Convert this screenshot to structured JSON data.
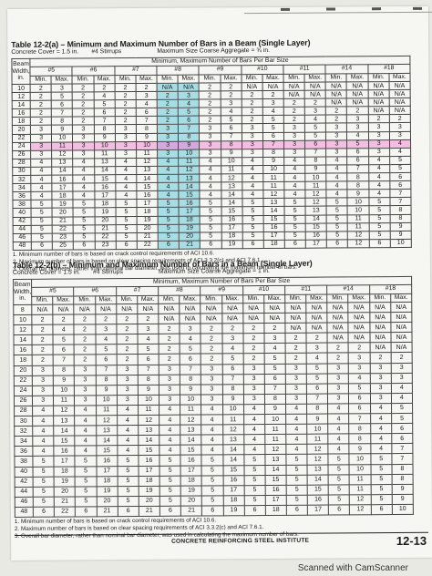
{
  "colors": {
    "paper": "#f6f6f2",
    "highlight_blue": "#a7dde5",
    "highlight_pink": "#f4bde2"
  },
  "table_a": {
    "title": "Table 12-2(a) – Minimum and Maximum Number of Bars in a Beam (Single Layer)",
    "concrete_cover": "Concrete Cover = 1.5 in.",
    "stirrups": "#4 Stirrups",
    "aggregate": "Maximum Size Coarse Aggregate = ¾ in.",
    "caption": "Minimum, Maximum Number of Bars Per Bar Size",
    "beam_width_label": "Beam Width, in.",
    "bar_sizes": [
      "#5",
      "#6",
      "#7",
      "#8",
      "#9",
      "#10",
      "#11",
      "#14",
      "#18"
    ],
    "min_label": "Min.",
    "max_label": "Max.",
    "rows": [
      [
        "10",
        "2",
        "3",
        "2",
        "2",
        "2",
        "2",
        "N/A",
        "N/A",
        "2",
        "2",
        "N/A",
        "N/A",
        "N/A",
        "N/A",
        "N/A",
        "N/A",
        "N/A",
        "N/A"
      ],
      [
        "12",
        "2",
        "5",
        "2",
        "4",
        "2",
        "3",
        "2",
        "3",
        "2",
        "2",
        "2",
        "2",
        "N/A",
        "N/A",
        "N/A",
        "N/A",
        "N/A",
        "N/A"
      ],
      [
        "14",
        "2",
        "6",
        "2",
        "5",
        "2",
        "4",
        "2",
        "4",
        "2",
        "3",
        "2",
        "3",
        "2",
        "2",
        "N/A",
        "N/A",
        "N/A",
        "N/A"
      ],
      [
        "16",
        "2",
        "7",
        "2",
        "6",
        "2",
        "6",
        "2",
        "5",
        "2",
        "4",
        "2",
        "4",
        "2",
        "3",
        "2",
        "2",
        "N/A",
        "N/A"
      ],
      [
        "18",
        "2",
        "8",
        "2",
        "7",
        "2",
        "7",
        "2",
        "6",
        "2",
        "5",
        "2",
        "5",
        "2",
        "4",
        "2",
        "3",
        "2",
        "2"
      ],
      [
        "20",
        "3",
        "9",
        "3",
        "8",
        "3",
        "8",
        "3",
        "7",
        "3",
        "6",
        "3",
        "5",
        "3",
        "5",
        "3",
        "3",
        "3",
        "3"
      ],
      [
        "22",
        "3",
        "10",
        "3",
        "9",
        "3",
        "9",
        "3",
        "8",
        "3",
        "7",
        "3",
        "6",
        "3",
        "5",
        "3",
        "4",
        "3",
        "3"
      ],
      [
        "24",
        "3",
        "11",
        "3",
        "10",
        "3",
        "10",
        "3",
        "9",
        "3",
        "8",
        "3",
        "7",
        "3",
        "6",
        "3",
        "5",
        "3",
        "4"
      ],
      [
        "26",
        "3",
        "12",
        "3",
        "11",
        "3",
        "11",
        "3",
        "10",
        "3",
        "9",
        "3",
        "8",
        "3",
        "7",
        "3",
        "6",
        "3",
        "4"
      ],
      [
        "28",
        "4",
        "13",
        "4",
        "13",
        "4",
        "12",
        "4",
        "11",
        "4",
        "10",
        "4",
        "9",
        "4",
        "8",
        "4",
        "6",
        "4",
        "5"
      ],
      [
        "30",
        "4",
        "14",
        "4",
        "14",
        "4",
        "13",
        "4",
        "12",
        "4",
        "11",
        "4",
        "10",
        "4",
        "9",
        "4",
        "7",
        "4",
        "5"
      ],
      [
        "32",
        "4",
        "16",
        "4",
        "15",
        "4",
        "14",
        "4",
        "13",
        "4",
        "12",
        "4",
        "11",
        "4",
        "10",
        "4",
        "8",
        "4",
        "6"
      ],
      [
        "34",
        "4",
        "17",
        "4",
        "16",
        "4",
        "15",
        "4",
        "14",
        "4",
        "13",
        "4",
        "11",
        "4",
        "11",
        "4",
        "8",
        "4",
        "6"
      ],
      [
        "36",
        "4",
        "18",
        "4",
        "17",
        "4",
        "16",
        "4",
        "15",
        "4",
        "14",
        "4",
        "12",
        "4",
        "12",
        "4",
        "9",
        "4",
        "7"
      ],
      [
        "38",
        "5",
        "19",
        "5",
        "18",
        "5",
        "17",
        "5",
        "16",
        "5",
        "14",
        "5",
        "13",
        "5",
        "12",
        "5",
        "10",
        "5",
        "7"
      ],
      [
        "40",
        "5",
        "20",
        "5",
        "19",
        "5",
        "18",
        "5",
        "17",
        "5",
        "15",
        "5",
        "14",
        "5",
        "13",
        "5",
        "10",
        "5",
        "8"
      ],
      [
        "42",
        "5",
        "21",
        "5",
        "20",
        "5",
        "19",
        "5",
        "18",
        "5",
        "16",
        "5",
        "15",
        "5",
        "14",
        "5",
        "11",
        "5",
        "8"
      ],
      [
        "44",
        "5",
        "22",
        "5",
        "21",
        "5",
        "20",
        "5",
        "19",
        "5",
        "17",
        "5",
        "16",
        "5",
        "15",
        "5",
        "11",
        "5",
        "9"
      ],
      [
        "46",
        "5",
        "23",
        "5",
        "22",
        "5",
        "21",
        "5",
        "20",
        "5",
        "18",
        "5",
        "17",
        "5",
        "16",
        "5",
        "12",
        "5",
        "9"
      ],
      [
        "48",
        "6",
        "25",
        "6",
        "23",
        "6",
        "22",
        "6",
        "21",
        "6",
        "19",
        "6",
        "18",
        "6",
        "17",
        "6",
        "12",
        "6",
        "10"
      ]
    ],
    "footnotes": [
      "1. Minimum number of bars is based on crack control requirements of ACI 10.6.",
      "2. Maximum number of bars is based on clear spacing requirements of ACI 3.3.2(c) and ACI 7.6.1.",
      "3. Overall bar diameter, rather than nominal bar diameter, was used in calculating the maximum number of bars."
    ]
  },
  "table_b": {
    "title": "Table 12-2(b) – Minimum and Maximum Number of Bars in a Beam (Single Layer)",
    "concrete_cover": "Concrete Cover = 1.5 in.",
    "stirrups": "#4 Stirrups",
    "aggregate": "Maximum Size Coarse Aggregate = 1 in.",
    "caption": "Minimum, Maximum Number of Bars Per Bar Size",
    "beam_width_label": "Beam Width, in.",
    "bar_sizes": [
      "#5",
      "#6",
      "#7",
      "#8",
      "#9",
      "#10",
      "#11",
      "#14",
      "#18"
    ],
    "min_label": "Min.",
    "max_label": "Max.",
    "rows": [
      [
        "8",
        "N/A",
        "N/A",
        "N/A",
        "N/A",
        "N/A",
        "N/A",
        "N/A",
        "N/A",
        "N/A",
        "N/A",
        "N/A",
        "N/A",
        "N/A",
        "N/A",
        "N/A",
        "N/A",
        "N/A",
        "N/A"
      ],
      [
        "10",
        "2",
        "2",
        "2",
        "2",
        "2",
        "2",
        "N/A",
        "N/A",
        "N/A",
        "N/A",
        "N/A",
        "N/A",
        "N/A",
        "N/A",
        "N/A",
        "N/A",
        "N/A",
        "N/A"
      ],
      [
        "12",
        "2",
        "4",
        "2",
        "3",
        "2",
        "3",
        "2",
        "3",
        "2",
        "2",
        "2",
        "2",
        "N/A",
        "N/A",
        "N/A",
        "N/A",
        "N/A",
        "N/A"
      ],
      [
        "14",
        "2",
        "5",
        "2",
        "4",
        "2",
        "4",
        "2",
        "4",
        "2",
        "3",
        "2",
        "3",
        "2",
        "2",
        "N/A",
        "N/A",
        "N/A",
        "N/A"
      ],
      [
        "16",
        "2",
        "6",
        "2",
        "5",
        "2",
        "5",
        "2",
        "5",
        "2",
        "4",
        "2",
        "4",
        "2",
        "3",
        "2",
        "2",
        "N/A",
        "N/A"
      ],
      [
        "18",
        "2",
        "7",
        "2",
        "6",
        "2",
        "6",
        "2",
        "6",
        "2",
        "5",
        "2",
        "5",
        "2",
        "4",
        "2",
        "3",
        "2",
        "2"
      ],
      [
        "20",
        "3",
        "8",
        "3",
        "7",
        "3",
        "7",
        "3",
        "7",
        "3",
        "6",
        "3",
        "5",
        "3",
        "5",
        "3",
        "3",
        "3",
        "3"
      ],
      [
        "22",
        "3",
        "9",
        "3",
        "8",
        "3",
        "8",
        "3",
        "8",
        "3",
        "7",
        "3",
        "6",
        "3",
        "5",
        "3",
        "4",
        "3",
        "3"
      ],
      [
        "24",
        "3",
        "10",
        "3",
        "9",
        "3",
        "9",
        "3",
        "9",
        "3",
        "8",
        "3",
        "7",
        "3",
        "6",
        "3",
        "5",
        "3",
        "4"
      ],
      [
        "26",
        "3",
        "11",
        "3",
        "10",
        "3",
        "10",
        "3",
        "10",
        "3",
        "9",
        "3",
        "8",
        "3",
        "7",
        "3",
        "6",
        "3",
        "4"
      ],
      [
        "28",
        "4",
        "12",
        "4",
        "11",
        "4",
        "11",
        "4",
        "11",
        "4",
        "10",
        "4",
        "9",
        "4",
        "8",
        "4",
        "6",
        "4",
        "5"
      ],
      [
        "30",
        "4",
        "13",
        "4",
        "12",
        "4",
        "12",
        "4",
        "12",
        "4",
        "11",
        "4",
        "10",
        "4",
        "9",
        "4",
        "7",
        "4",
        "5"
      ],
      [
        "32",
        "4",
        "14",
        "4",
        "13",
        "4",
        "13",
        "4",
        "13",
        "4",
        "12",
        "4",
        "11",
        "4",
        "10",
        "4",
        "8",
        "4",
        "6"
      ],
      [
        "34",
        "4",
        "15",
        "4",
        "14",
        "4",
        "14",
        "4",
        "14",
        "4",
        "13",
        "4",
        "11",
        "4",
        "11",
        "4",
        "8",
        "4",
        "6"
      ],
      [
        "36",
        "4",
        "16",
        "4",
        "15",
        "4",
        "15",
        "4",
        "15",
        "4",
        "14",
        "4",
        "12",
        "4",
        "12",
        "4",
        "9",
        "4",
        "7"
      ],
      [
        "38",
        "5",
        "17",
        "5",
        "16",
        "5",
        "16",
        "5",
        "16",
        "5",
        "14",
        "5",
        "13",
        "5",
        "12",
        "5",
        "10",
        "5",
        "7"
      ],
      [
        "40",
        "5",
        "18",
        "5",
        "17",
        "5",
        "17",
        "5",
        "17",
        "5",
        "15",
        "5",
        "14",
        "5",
        "13",
        "5",
        "10",
        "5",
        "8"
      ],
      [
        "42",
        "5",
        "19",
        "5",
        "18",
        "5",
        "18",
        "5",
        "18",
        "5",
        "16",
        "5",
        "15",
        "5",
        "14",
        "5",
        "11",
        "5",
        "8"
      ],
      [
        "44",
        "5",
        "20",
        "5",
        "19",
        "5",
        "19",
        "5",
        "19",
        "5",
        "17",
        "5",
        "16",
        "5",
        "15",
        "5",
        "11",
        "5",
        "9"
      ],
      [
        "46",
        "5",
        "21",
        "5",
        "20",
        "5",
        "20",
        "5",
        "20",
        "5",
        "18",
        "5",
        "17",
        "5",
        "16",
        "5",
        "12",
        "5",
        "9"
      ],
      [
        "48",
        "6",
        "22",
        "6",
        "21",
        "6",
        "21",
        "6",
        "21",
        "6",
        "19",
        "6",
        "18",
        "6",
        "17",
        "6",
        "12",
        "6",
        "10"
      ]
    ],
    "footnotes": [
      "1. Minimum number of bars is based on crack control requirements of ACI 10.6.",
      "2. Maximum number of bars is based on clear spacing requirements of ACI 3.3.2(c) and ACI 7.6.1.",
      "3. Overall bar diameter, rather than nominal bar diameter, was used in calculating the maximum number of bars."
    ]
  },
  "footer": {
    "publisher": "CONCRETE REINFORCING STEEL INSTITUTE",
    "page_number": "12-13"
  },
  "watermark": "Scanned with CamScanner"
}
